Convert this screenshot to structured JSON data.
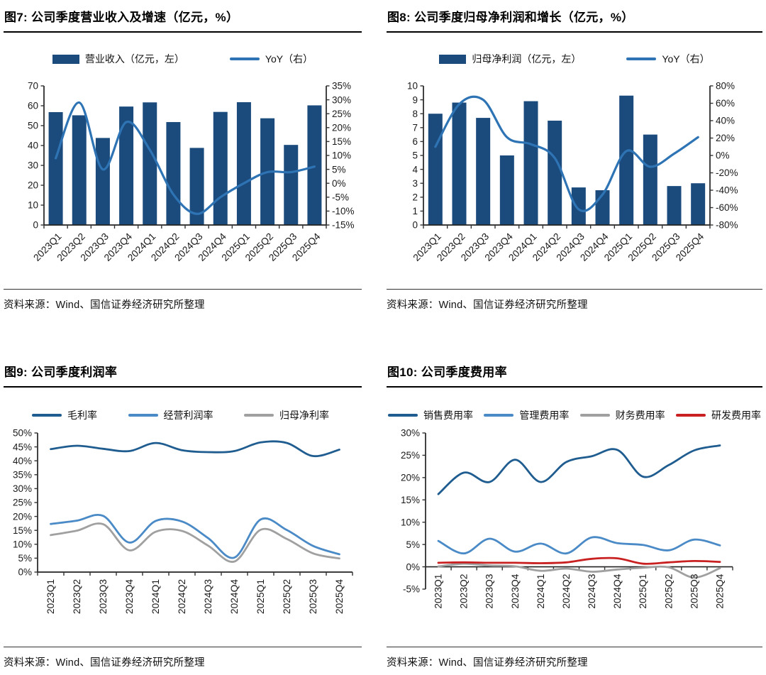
{
  "page": {
    "background": "#FFFFFF"
  },
  "figures": [
    {
      "title": "图7: 公司季度营业收入及增速（亿元，%）",
      "source": "资料来源：Wind、国信证券经济研究所整理"
    },
    {
      "title": "图8: 公司季度归母净利润和增长（亿元，%）",
      "source": "资料来源：Wind、国信证券经济研究所整理"
    },
    {
      "title": "图9: 公司季度利润率",
      "source": "资料来源：Wind、国信证券经济研究所整理"
    },
    {
      "title": "图10: 公司季度费用率",
      "source": "资料来源：Wind、国信证券经济研究所整理"
    }
  ],
  "chart_data": [
    {
      "type": "bar+line",
      "title": "图7: 公司季度营业收入及增速（亿元，%）",
      "categories": [
        "2023Q1",
        "2023Q2",
        "2023Q3",
        "2023Q4",
        "2024Q1",
        "2024Q2",
        "2024Q3",
        "2024Q4",
        "2025Q1",
        "2025Q2",
        "2025Q3",
        "2025Q4"
      ],
      "series": [
        {
          "name": "营业收入（亿元，左）",
          "kind": "bar",
          "axis": "left",
          "color": "#1B4B7D",
          "values": [
            56.8,
            55.2,
            43.8,
            59.6,
            61.7,
            51.8,
            38.8,
            56.9,
            61.8,
            53.7,
            40.3,
            60.2
          ]
        },
        {
          "name": "YoY（右）",
          "kind": "line",
          "axis": "right",
          "color": "#2E74B5",
          "values": [
            9,
            29,
            5,
            22,
            12,
            -4,
            -11,
            -5,
            0,
            4,
            4,
            6
          ]
        }
      ],
      "left_axis": {
        "min": 0,
        "max": 70,
        "step": 10,
        "format": "number"
      },
      "right_axis": {
        "min": -15,
        "max": 35,
        "step": 5,
        "format": "percent"
      },
      "grid": false,
      "legend_position": "top",
      "x_label_rotation": -45
    },
    {
      "type": "bar+line",
      "title": "图8: 公司季度归母净利润和增长（亿元，%）",
      "categories": [
        "2023Q1",
        "2023Q2",
        "2023Q3",
        "2023Q4",
        "2024Q1",
        "2024Q2",
        "2024Q3",
        "2024Q4",
        "2025Q1",
        "2025Q2",
        "2025Q3",
        "2025Q4"
      ],
      "series": [
        {
          "name": "归母净利润（亿元，左）",
          "kind": "bar",
          "axis": "left",
          "color": "#1B4B7D",
          "values": [
            8.0,
            8.8,
            7.7,
            5.0,
            8.9,
            7.5,
            2.7,
            2.5,
            9.3,
            6.5,
            2.8,
            3.0
          ]
        },
        {
          "name": "YoY（右）",
          "kind": "line",
          "axis": "right",
          "color": "#2E74B5",
          "values": [
            10,
            59,
            64,
            21,
            13,
            -3,
            -62,
            -45,
            5,
            -13,
            2,
            21
          ]
        }
      ],
      "left_axis": {
        "min": 0,
        "max": 10,
        "step": 1,
        "format": "number"
      },
      "right_axis": {
        "min": -80,
        "max": 80,
        "step": 20,
        "format": "percent"
      },
      "grid": false,
      "legend_position": "top",
      "x_label_rotation": -45
    },
    {
      "type": "line",
      "title": "图9: 公司季度利润率",
      "categories": [
        "2023Q1",
        "2023Q2",
        "2023Q3",
        "2023Q4",
        "2024Q1",
        "2024Q2",
        "2024Q3",
        "2024Q4",
        "2025Q1",
        "2025Q2",
        "2025Q3",
        "2025Q4"
      ],
      "series": [
        {
          "name": "毛利率",
          "kind": "line",
          "axis": "left",
          "color": "#1F5C8F",
          "values": [
            44.2,
            45.4,
            44.3,
            43.5,
            46.4,
            43.8,
            43.1,
            43.5,
            46.6,
            46.4,
            41.7,
            44.0
          ]
        },
        {
          "name": "经营利润率",
          "kind": "line",
          "axis": "left",
          "color": "#4A8AC6",
          "values": [
            17.3,
            18.5,
            20.2,
            10.6,
            18.4,
            18.2,
            12.2,
            5.2,
            18.9,
            15.1,
            9.4,
            6.4
          ]
        },
        {
          "name": "归母净利率",
          "kind": "line",
          "axis": "left",
          "color": "#A0A0A0",
          "values": [
            13.3,
            14.9,
            17.2,
            7.8,
            14.5,
            14.8,
            9.5,
            3.8,
            15.2,
            11.9,
            6.7,
            4.9
          ]
        }
      ],
      "left_axis": {
        "min": 0,
        "max": 50,
        "step": 5,
        "format": "percent"
      },
      "grid": false,
      "legend_position": "top",
      "x_label_rotation": -90
    },
    {
      "type": "line",
      "title": "图10: 公司季度费用率",
      "categories": [
        "2023Q1",
        "2023Q2",
        "2023Q3",
        "2023Q4",
        "2024Q1",
        "2024Q2",
        "2024Q3",
        "2024Q4",
        "2025Q1",
        "2025Q2",
        "2025Q3",
        "2025Q4"
      ],
      "series": [
        {
          "name": "销售费用率",
          "kind": "line",
          "axis": "left",
          "color": "#1F5C8F",
          "values": [
            16.3,
            21.1,
            19.0,
            24.0,
            19.0,
            23.5,
            24.8,
            26.2,
            20.2,
            22.8,
            26.1,
            27.2
          ]
        },
        {
          "name": "管理费用率",
          "kind": "line",
          "axis": "left",
          "color": "#4A8AC6",
          "values": [
            5.8,
            3.0,
            6.3,
            3.4,
            5.2,
            3.0,
            6.6,
            5.3,
            4.9,
            3.7,
            6.1,
            4.8
          ]
        },
        {
          "name": "财务费用率",
          "kind": "line",
          "axis": "left",
          "color": "#A0A0A0",
          "values": [
            0.1,
            0.7,
            0.3,
            0.1,
            -0.9,
            -0.4,
            -1.1,
            -0.6,
            -0.2,
            -0.1,
            -2.4,
            -0.3
          ]
        },
        {
          "name": "研发费用率",
          "kind": "line",
          "axis": "left",
          "color": "#C92121",
          "values": [
            0.9,
            1.0,
            0.9,
            0.9,
            0.8,
            1.0,
            1.8,
            1.9,
            0.7,
            1.0,
            1.3,
            1.1
          ]
        }
      ],
      "left_axis": {
        "min": -5,
        "max": 30,
        "step": 5,
        "format": "percent"
      },
      "grid": false,
      "legend_position": "top",
      "x_label_rotation": -90
    }
  ]
}
